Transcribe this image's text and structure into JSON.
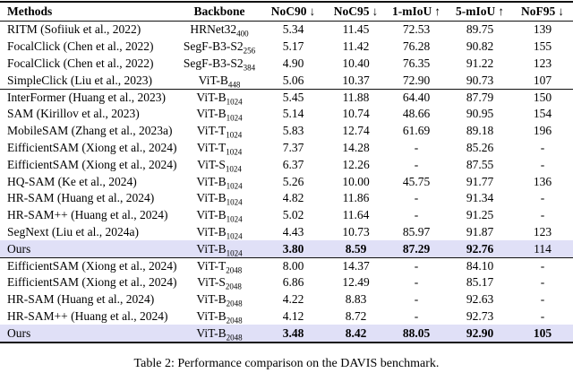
{
  "table": {
    "caption": "Table 2: Performance comparison on the DAVIS benchmark.",
    "highlight_color": "#e0e0f7",
    "columns": [
      {
        "label": "Methods",
        "arrow": ""
      },
      {
        "label": "Backbone",
        "arrow": ""
      },
      {
        "label": "NoC90",
        "arrow": "↓"
      },
      {
        "label": "NoC95",
        "arrow": "↓"
      },
      {
        "label": "1-mIoU",
        "arrow": "↑"
      },
      {
        "label": "5-mIoU",
        "arrow": "↑"
      },
      {
        "label": "NoF95",
        "arrow": "↓"
      }
    ],
    "rows": [
      {
        "method": "RITM (Sofiiuk et al., 2022)",
        "backbone": "HRNet32",
        "backbone_sub": "400",
        "noc90": "5.34",
        "noc95": "11.45",
        "miou1": "72.53",
        "miou5": "89.75",
        "nof95": "139"
      },
      {
        "method": "FocalClick (Chen et al., 2022)",
        "backbone": "SegF-B3-S2",
        "backbone_sub": "256",
        "noc90": "5.17",
        "noc95": "11.42",
        "miou1": "76.28",
        "miou5": "90.82",
        "nof95": "155"
      },
      {
        "method": "FocalClick (Chen et al., 2022)",
        "backbone": "SegF-B3-S2",
        "backbone_sub": "384",
        "noc90": "4.90",
        "noc95": "10.40",
        "miou1": "76.35",
        "miou5": "91.22",
        "nof95": "123"
      },
      {
        "method": "SimpleClick (Liu et al., 2023)",
        "backbone": "ViT-B",
        "backbone_sub": "448",
        "noc90": "5.06",
        "noc95": "10.37",
        "miou1": "72.90",
        "miou5": "90.73",
        "nof95": "107"
      },
      {
        "method": "InterFormer (Huang et al., 2023)",
        "backbone": "ViT-B",
        "backbone_sub": "1024",
        "noc90": "5.45",
        "noc95": "11.88",
        "miou1": "64.40",
        "miou5": "87.79",
        "nof95": "150"
      },
      {
        "method": "SAM (Kirillov et al., 2023)",
        "backbone": "ViT-B",
        "backbone_sub": "1024",
        "noc90": "5.14",
        "noc95": "10.74",
        "miou1": "48.66",
        "miou5": "90.95",
        "nof95": "154"
      },
      {
        "method": "MobileSAM (Zhang et al., 2023a)",
        "backbone": "ViT-T",
        "backbone_sub": "1024",
        "noc90": "5.83",
        "noc95": "12.74",
        "miou1": "61.69",
        "miou5": "89.18",
        "nof95": "196"
      },
      {
        "method": "EifficientSAM (Xiong et al., 2024)",
        "backbone": "ViT-T",
        "backbone_sub": "1024",
        "noc90": "7.37",
        "noc95": "14.28",
        "miou1": "-",
        "miou5": "85.26",
        "nof95": "-"
      },
      {
        "method": "EifficientSAM (Xiong et al., 2024)",
        "backbone": "ViT-S",
        "backbone_sub": "1024",
        "noc90": "6.37",
        "noc95": "12.26",
        "miou1": "-",
        "miou5": "87.55",
        "nof95": "-"
      },
      {
        "method": "HQ-SAM (Ke et al., 2024)",
        "backbone": "ViT-B",
        "backbone_sub": "1024",
        "noc90": "5.26",
        "noc95": "10.00",
        "miou1": "45.75",
        "miou5": "91.77",
        "nof95": "136"
      },
      {
        "method": "HR-SAM (Huang et al., 2024)",
        "backbone": "ViT-B",
        "backbone_sub": "1024",
        "noc90": "4.82",
        "noc95": "11.86",
        "miou1": "-",
        "miou5": "91.34",
        "nof95": "-"
      },
      {
        "method": "HR-SAM++ (Huang et al., 2024)",
        "backbone": "ViT-B",
        "backbone_sub": "1024",
        "noc90": "5.02",
        "noc95": "11.64",
        "miou1": "-",
        "miou5": "91.25",
        "nof95": "-"
      },
      {
        "method": "SegNext (Liu et al., 2024a)",
        "backbone": "ViT-B",
        "backbone_sub": "1024",
        "noc90": "4.43",
        "noc95": "10.73",
        "miou1": "85.97",
        "miou5": "91.87",
        "nof95": "123"
      },
      {
        "method": "Ours",
        "backbone": "ViT-B",
        "backbone_sub": "1024",
        "noc90": "3.80",
        "noc95": "8.59",
        "miou1": "87.29",
        "miou5": "92.76",
        "nof95": "114"
      },
      {
        "method": "EifficientSAM (Xiong et al., 2024)",
        "backbone": "ViT-T",
        "backbone_sub": "2048",
        "noc90": "8.00",
        "noc95": "14.37",
        "miou1": "-",
        "miou5": "84.10",
        "nof95": "-"
      },
      {
        "method": "EifficientSAM (Xiong et al., 2024)",
        "backbone": "ViT-S",
        "backbone_sub": "2048",
        "noc90": "6.86",
        "noc95": "12.49",
        "miou1": "-",
        "miou5": "85.17",
        "nof95": "-"
      },
      {
        "method": "HR-SAM (Huang et al., 2024)",
        "backbone": "ViT-B",
        "backbone_sub": "2048",
        "noc90": "4.22",
        "noc95": "8.83",
        "miou1": "-",
        "miou5": "92.63",
        "nof95": "-"
      },
      {
        "method": "HR-SAM++ (Huang et al., 2024)",
        "backbone": "ViT-B",
        "backbone_sub": "2048",
        "noc90": "4.12",
        "noc95": "8.72",
        "miou1": "-",
        "miou5": "92.73",
        "nof95": "-"
      },
      {
        "method": "Ours",
        "backbone": "ViT-B",
        "backbone_sub": "2048",
        "noc90": "3.48",
        "noc95": "8.42",
        "miou1": "88.05",
        "miou5": "92.90",
        "nof95": "105"
      }
    ]
  }
}
